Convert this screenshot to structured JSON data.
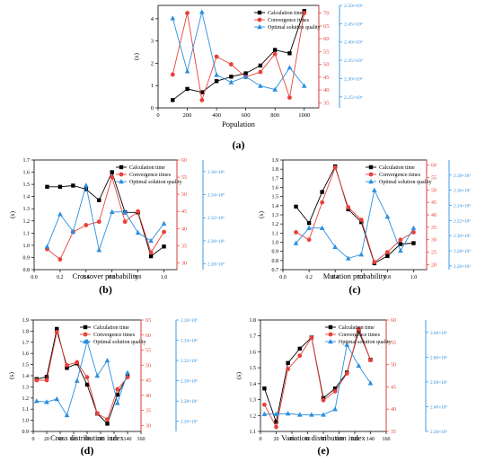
{
  "colors": {
    "calc": "#000000",
    "conv": "#e8413a",
    "opt": "#2a8ee0"
  },
  "chart_data": [
    {
      "panel_label": "(a)",
      "type": "line",
      "xlabel": "Population",
      "ylabel_left": "(s)",
      "legend_position": "top-right",
      "xlim": [
        0,
        1100
      ],
      "xticks": [
        "0",
        "200",
        "400",
        "600",
        "800",
        "1000"
      ],
      "ylim_left": [
        0,
        4.6
      ],
      "yticks_left": [
        "0",
        "1",
        "2",
        "3",
        "4"
      ],
      "ylim_conv": [
        33,
        73
      ],
      "yticks_conv": [
        "35",
        "40",
        "45",
        "50",
        "55",
        "60",
        "65",
        "70"
      ],
      "ylim_opt": [
        2.22,
        2.5
      ],
      "yticks_opt": [
        "2.25×10⁶",
        "2.30×10⁶",
        "2.35×10⁶",
        "2.40×10⁶",
        "2.45×10⁶",
        "2.50×10⁶"
      ],
      "series": [
        {
          "name": "Calculation time",
          "axis": "left",
          "x": [
            100,
            200,
            300,
            400,
            500,
            600,
            700,
            800,
            900,
            1000
          ],
          "values": [
            0.35,
            0.85,
            0.7,
            1.2,
            1.4,
            1.55,
            1.9,
            2.6,
            2.45,
            4.35
          ]
        },
        {
          "name": "Convergence times",
          "axis": "right1",
          "x": [
            100,
            200,
            300,
            400,
            500,
            600,
            700,
            800,
            900,
            1000
          ],
          "values": [
            46,
            70,
            36,
            53,
            50,
            45,
            47,
            54,
            37,
            70
          ]
        },
        {
          "name": "Optimal solution quality",
          "axis": "right2",
          "x": [
            100,
            200,
            300,
            400,
            500,
            600,
            700,
            800,
            900,
            1000
          ],
          "values": [
            2.465,
            2.32,
            2.482,
            2.31,
            2.29,
            2.305,
            2.28,
            2.27,
            2.33,
            2.28
          ]
        }
      ]
    },
    {
      "panel_label": "(b)",
      "type": "line",
      "xlabel": "Crossover probability",
      "ylabel_left": "(s)",
      "legend_position": "top-right",
      "xlim": [
        0,
        1.1
      ],
      "xticks": [
        "0.0",
        "0.2",
        "0.4",
        "0.6",
        "0.8",
        "1.0"
      ],
      "ylim_left": [
        0.8,
        1.7
      ],
      "yticks_left": [
        "0.8",
        "0.9",
        "1.0",
        "1.1",
        "1.2",
        "1.3",
        "1.4",
        "1.5",
        "1.6",
        "1.7"
      ],
      "ylim_conv": [
        28,
        60
      ],
      "yticks_conv": [
        "30",
        "35",
        "40",
        "45",
        "50",
        "55",
        "60"
      ],
      "ylim_opt": [
        2.275,
        2.37
      ],
      "yticks_opt": [
        "2.28×10⁶",
        "2.30×10⁶",
        "2.32×10⁶",
        "2.34×10⁶",
        "2.36×10⁶"
      ],
      "series": [
        {
          "name": "Calculation time",
          "axis": "left",
          "x": [
            0.1,
            0.2,
            0.3,
            0.4,
            0.5,
            0.6,
            0.7,
            0.8,
            0.9,
            1.0
          ],
          "values": [
            1.48,
            1.48,
            1.49,
            1.46,
            1.37,
            1.6,
            1.27,
            1.27,
            0.91,
            0.99
          ]
        },
        {
          "name": "Convergence times",
          "axis": "right1",
          "x": [
            0.1,
            0.2,
            0.3,
            0.4,
            0.5,
            0.6,
            0.7,
            0.8,
            0.9,
            1.0
          ],
          "values": [
            34,
            31,
            39,
            41,
            42,
            55,
            42,
            45,
            33,
            39
          ]
        },
        {
          "name": "Optimal solution quality",
          "axis": "right2",
          "x": [
            0.1,
            0.2,
            0.3,
            0.4,
            0.5,
            0.6,
            0.7,
            0.8,
            0.9,
            1.0
          ],
          "values": [
            2.295,
            2.323,
            2.308,
            2.348,
            2.292,
            2.325,
            2.325,
            2.307,
            2.3,
            2.315
          ]
        }
      ]
    },
    {
      "panel_label": "(c)",
      "type": "line",
      "xlabel": "Mutation probability",
      "ylabel_left": "(s)",
      "legend_position": "top-right",
      "xlim": [
        0,
        1.1
      ],
      "xticks": [
        "0.0",
        "0.2",
        "0.4",
        "0.6",
        "0.8",
        "1.0"
      ],
      "ylim_left": [
        0.7,
        1.9
      ],
      "yticks_left": [
        "0.7",
        "0.8",
        "0.9",
        "1.0",
        "1.1",
        "1.2",
        "1.3",
        "1.4",
        "1.5",
        "1.6",
        "1.7",
        "1.8",
        "1.9"
      ],
      "ylim_conv": [
        18,
        62
      ],
      "yticks_conv": [
        "20",
        "25",
        "30",
        "35",
        "40",
        "45",
        "50",
        "55",
        "60"
      ],
      "ylim_opt": [
        2.255,
        2.4
      ],
      "yticks_opt": [
        "2.26×10⁶",
        "2.28×10⁶",
        "2.30×10⁶",
        "2.32×10⁶",
        "2.34×10⁶",
        "2.36×10⁶",
        "2.38×10⁶"
      ],
      "series": [
        {
          "name": "Calculation time",
          "axis": "left",
          "x": [
            0.1,
            0.2,
            0.3,
            0.4,
            0.5,
            0.6,
            0.7,
            0.8,
            0.9,
            1.0
          ],
          "values": [
            1.39,
            1.21,
            1.55,
            1.83,
            1.36,
            1.22,
            0.77,
            0.85,
            0.98,
            0.99
          ]
        },
        {
          "name": "Convergence times",
          "axis": "right1",
          "x": [
            0.1,
            0.2,
            0.3,
            0.4,
            0.5,
            0.6,
            0.7,
            0.8,
            0.9,
            1.0
          ],
          "values": [
            33,
            30,
            45,
            59,
            43,
            38,
            21,
            25,
            30,
            33
          ]
        },
        {
          "name": "Optimal solution quality",
          "axis": "right2",
          "x": [
            0.1,
            0.2,
            0.3,
            0.4,
            0.5,
            0.6,
            0.7,
            0.8,
            0.9,
            1.0
          ],
          "values": [
            2.29,
            2.31,
            2.31,
            2.285,
            2.27,
            2.275,
            2.36,
            2.325,
            2.28,
            2.31
          ]
        }
      ]
    },
    {
      "panel_label": "(d)",
      "type": "line",
      "xlabel": "Cross distribution index",
      "ylabel_left": "(s)",
      "legend_position": "top-right",
      "xlim": [
        0,
        160
      ],
      "xticks": [
        "0",
        "20",
        "40",
        "60",
        "80",
        "100",
        "120",
        "140",
        "160"
      ],
      "ylim_left": [
        0.9,
        1.9
      ],
      "yticks_left": [
        "0.9",
        "1.0",
        "1.1",
        "1.2",
        "1.3",
        "1.4",
        "1.5",
        "1.6",
        "1.7",
        "1.8",
        "1.9"
      ],
      "ylim_conv": [
        28,
        65
      ],
      "yticks_conv": [
        "30",
        "35",
        "40",
        "45",
        "50",
        "55",
        "60",
        "65"
      ],
      "ylim_opt": [
        2.25,
        2.36
      ],
      "yticks_opt": [
        "2.26×10⁶",
        "2.28×10⁶",
        "2.30×10⁶",
        "2.32×10⁶",
        "2.34×10⁶",
        "2.36×10⁶"
      ],
      "series": [
        {
          "name": "Calculation time",
          "axis": "left",
          "x": [
            5,
            20,
            35,
            50,
            65,
            80,
            95,
            110,
            125,
            140
          ],
          "values": [
            1.37,
            1.39,
            1.82,
            1.47,
            1.51,
            1.32,
            1.06,
            0.97,
            1.23,
            1.4
          ]
        },
        {
          "name": "Convergence times",
          "axis": "right1",
          "x": [
            5,
            20,
            35,
            50,
            65,
            80,
            95,
            110,
            125,
            140
          ],
          "values": [
            45,
            45,
            61,
            50,
            51,
            46,
            34,
            32,
            42,
            46
          ]
        },
        {
          "name": "Optimal solution quality",
          "axis": "right2",
          "x": [
            5,
            20,
            35,
            50,
            65,
            80,
            95,
            110,
            125,
            140
          ],
          "values": [
            2.28,
            2.279,
            2.282,
            2.266,
            2.3,
            2.339,
            2.305,
            2.32,
            2.278,
            2.308
          ]
        }
      ]
    },
    {
      "panel_label": "(e)",
      "type": "line",
      "xlabel": "Variation distribution index",
      "ylabel_left": "(s)",
      "legend_position": "top-right",
      "xlim": [
        0,
        160
      ],
      "xticks": [
        "0",
        "20",
        "40",
        "60",
        "80",
        "100",
        "120",
        "140",
        "160"
      ],
      "ylim_left": [
        1.1,
        1.8
      ],
      "yticks_left": [
        "1.1",
        "1.2",
        "1.3",
        "1.4",
        "1.5",
        "1.6",
        "1.7",
        "1.8"
      ],
      "ylim_conv": [
        35,
        60
      ],
      "yticks_conv": [
        "35",
        "40",
        "45",
        "50",
        "55",
        "60"
      ],
      "ylim_opt": [
        2.2,
        3.1
      ],
      "yticks_opt": [
        "2.20×10⁶",
        "2.40×10⁶",
        "2.60×10⁶",
        "2.80×10⁶",
        "3.00×10⁶"
      ],
      "series": [
        {
          "name": "Calculation time",
          "axis": "left",
          "x": [
            5,
            20,
            35,
            50,
            65,
            80,
            95,
            110,
            125,
            140
          ],
          "values": [
            1.37,
            1.16,
            1.53,
            1.62,
            1.69,
            1.31,
            1.37,
            1.47,
            1.73,
            1.55
          ]
        },
        {
          "name": "Convergence times",
          "axis": "right1",
          "x": [
            5,
            20,
            35,
            50,
            65,
            80,
            95,
            110,
            125,
            140
          ],
          "values": [
            41,
            36,
            49,
            52,
            56,
            42,
            44,
            48,
            58,
            51
          ]
        },
        {
          "name": "Optimal solution quality",
          "axis": "right2",
          "x": [
            5,
            20,
            35,
            50,
            65,
            80,
            95,
            110,
            125,
            140
          ],
          "values": [
            2.34,
            2.34,
            2.345,
            2.335,
            2.335,
            2.335,
            2.38,
            2.9,
            2.73,
            2.59
          ]
        }
      ]
    }
  ]
}
